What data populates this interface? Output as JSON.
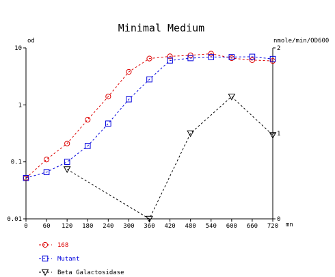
{
  "chart_data": {
    "type": "line",
    "title": "Minimal Medium",
    "xlabel": "mn",
    "ylabel_left": "od",
    "ylabel_right": "nmole/min/OD600",
    "x_ticks": [
      0,
      60,
      120,
      180,
      240,
      300,
      360,
      420,
      480,
      540,
      600,
      660,
      720
    ],
    "xlim": [
      0,
      720
    ],
    "y_left_scale": "log",
    "y_left_ticks": [
      "10",
      "1",
      "0.1",
      "0.01"
    ],
    "y_left_tick_values": [
      10,
      1,
      0.1,
      0.01
    ],
    "ylim_left": [
      0.01,
      10
    ],
    "y_right_ticks": [
      "2",
      "1",
      "0"
    ],
    "y_right_tick_values": [
      2,
      1,
      0
    ],
    "ylim_right": [
      0,
      2
    ],
    "grid": false,
    "legend_position": "bottom-left",
    "series": [
      {
        "name": "168",
        "axis": "left",
        "color": "#dd0000",
        "marker": "circle",
        "line": "dashed",
        "x": [
          0,
          60,
          120,
          180,
          240,
          300,
          360,
          420,
          480,
          540,
          600,
          660,
          720
        ],
        "values": [
          0.052,
          0.11,
          0.21,
          0.55,
          1.4,
          3.8,
          6.5,
          7.1,
          7.4,
          7.9,
          6.6,
          6.1,
          5.9
        ]
      },
      {
        "name": "Mutant",
        "axis": "left",
        "color": "#0000dd",
        "marker": "square",
        "line": "dashed",
        "x": [
          0,
          60,
          120,
          180,
          240,
          300,
          360,
          420,
          480,
          540,
          600,
          660,
          720
        ],
        "values": [
          0.052,
          0.066,
          0.1,
          0.19,
          0.47,
          1.25,
          2.8,
          6.0,
          6.6,
          6.9,
          6.9,
          7.0,
          6.4
        ]
      },
      {
        "name": "Beta Galactosidase",
        "axis": "right",
        "color": "#000000",
        "marker": "triangle-down",
        "line": "dashed",
        "x": [
          120,
          360,
          480,
          600,
          720
        ],
        "values": [
          0.58,
          0.0,
          1.0,
          1.43,
          0.98
        ]
      }
    ]
  }
}
